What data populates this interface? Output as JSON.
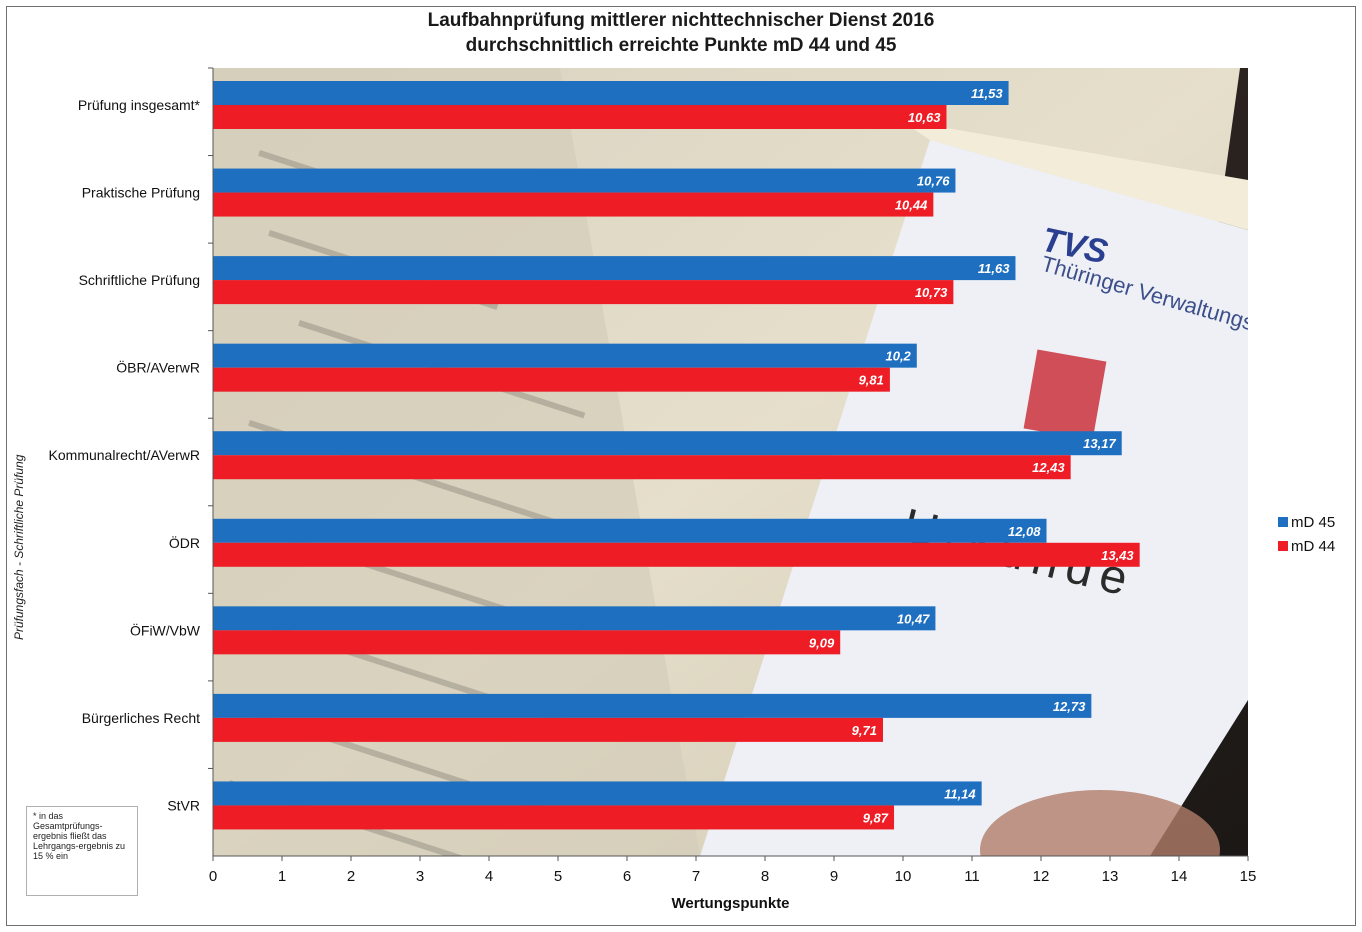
{
  "chart_data": {
    "type": "bar",
    "orientation": "horizontal",
    "title": "Laufbahnprüfung mittlerer nichttechnischer Dienst 2016",
    "subtitle": "durchschnittlich erreichte Punkte  mD 44 und 45",
    "xlabel": "Wertungspunkte",
    "ylabel": "Prüfungsfach - Schriftliche Prüfung",
    "xlim": [
      0,
      15
    ],
    "xticks": [
      "0",
      "1",
      "2",
      "3",
      "4",
      "5",
      "6",
      "7",
      "8",
      "9",
      "10",
      "11",
      "12",
      "13",
      "14",
      "15"
    ],
    "categories": [
      "Prüfung insgesamt*",
      "Praktische Prüfung",
      "Schriftliche Prüfung",
      "ÖBR/AVerwR",
      "Kommunalrecht/AVerwR",
      "ÖDR",
      "ÖFiW/VbW",
      "Bürgerliches Recht",
      "StVR"
    ],
    "series": [
      {
        "name": "mD 45",
        "color": "#1f6fc0",
        "values": [
          11.53,
          10.76,
          11.63,
          10.2,
          13.17,
          12.08,
          10.47,
          12.73,
          11.14
        ],
        "labels": [
          "11,53",
          "10,76",
          "11,63",
          "10,2",
          "13,17",
          "12,08",
          "10,47",
          "12,73",
          "11,14"
        ]
      },
      {
        "name": "mD 44",
        "color": "#ee1c25",
        "values": [
          10.63,
          10.44,
          10.73,
          9.81,
          12.43,
          13.43,
          9.09,
          9.71,
          9.87
        ],
        "labels": [
          "10,63",
          "10,44",
          "10,73",
          "9,81",
          "12,43",
          "13,43",
          "9,09",
          "9,71",
          "9,87"
        ]
      }
    ],
    "legend_position": "right",
    "grid": false,
    "background": "photo of a certificate document (Thüringer Verwaltungsschule, Urkunde)"
  },
  "background_text": {
    "logo": "TVS",
    "school": "Thüringer Verwaltungsschule",
    "doc": "Urkunde"
  },
  "footnote": "* in das Gesamtprüfungs-ergebnis fließt das Lehrgangs-ergebnis zu 15 % ein"
}
